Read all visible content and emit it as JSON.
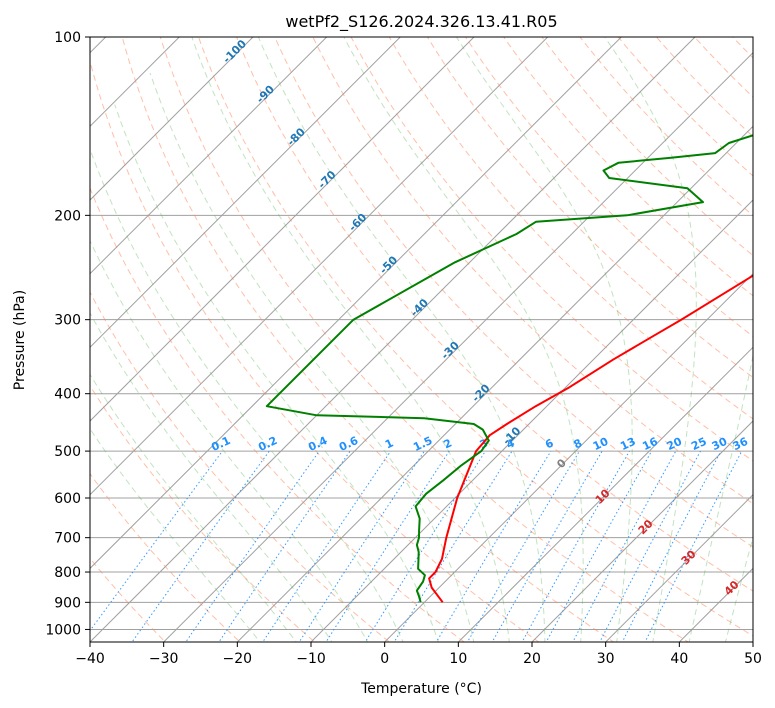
{
  "chart_data": {
    "type": "line",
    "subtype": "skew-t log-p diagram",
    "title": "wetPf2_S126.2024.326.13.41.R05",
    "xlabel": "Temperature (°C)",
    "ylabel": "Pressure (hPa)",
    "xlim": [
      -40,
      50
    ],
    "ylim": [
      1050,
      100
    ],
    "yscale": "log",
    "x_ticks": [
      -40,
      -30,
      -20,
      -10,
      0,
      10,
      20,
      30,
      40,
      50
    ],
    "y_ticks": [
      100,
      200,
      300,
      400,
      500,
      600,
      700,
      800,
      900,
      1000
    ],
    "grid": true,
    "series": [
      {
        "color": "#ff0000",
        "points": [
          [
            900,
            2.5
          ],
          [
            850,
            -1.0
          ],
          [
            820,
            -2.6
          ],
          [
            800,
            -2.6
          ],
          [
            760,
            -3.5
          ],
          [
            700,
            -5.8
          ],
          [
            600,
            -9.7
          ],
          [
            500,
            -13.5
          ],
          [
            470,
            -13.8
          ],
          [
            450,
            -13.0
          ],
          [
            420,
            -11.5
          ],
          [
            390,
            -9.5
          ],
          [
            350,
            -7.3
          ],
          [
            320,
            -5.1
          ],
          [
            300,
            -3.5
          ],
          [
            250,
            0.5
          ],
          [
            200,
            4.0
          ],
          [
            180,
            6.7
          ],
          [
            160,
            9.4
          ],
          [
            140,
            13.5
          ],
          [
            120,
            16.5
          ],
          [
            100,
            20.0
          ]
        ]
      },
      {
        "color": "#008000",
        "points": [
          [
            900,
            -0.5
          ],
          [
            880,
            -1.5
          ],
          [
            860,
            -2.6
          ],
          [
            830,
            -3.0
          ],
          [
            810,
            -3.6
          ],
          [
            790,
            -5.4
          ],
          [
            760,
            -6.7
          ],
          [
            740,
            -7.6
          ],
          [
            720,
            -8.8
          ],
          [
            700,
            -9.5
          ],
          [
            680,
            -10.5
          ],
          [
            650,
            -12.0
          ],
          [
            620,
            -14.2
          ],
          [
            590,
            -14.5
          ],
          [
            560,
            -14.0
          ],
          [
            530,
            -13.6
          ],
          [
            500,
            -12.8
          ],
          [
            480,
            -13.2
          ],
          [
            460,
            -15.5
          ],
          [
            450,
            -17.5
          ],
          [
            440,
            -25.0
          ],
          [
            435,
            -40.0
          ],
          [
            420,
            -48.0
          ],
          [
            300,
            -48.0
          ],
          [
            240,
            -42.0
          ],
          [
            215,
            -37.5
          ],
          [
            205,
            -36.5
          ],
          [
            200,
            -25.0
          ],
          [
            190,
            -16.5
          ],
          [
            180,
            -20.5
          ],
          [
            173,
            -32.5
          ],
          [
            168,
            -34.3
          ],
          [
            163,
            -33.3
          ],
          [
            160,
            -27.0
          ],
          [
            157,
            -21.5
          ],
          [
            151,
            -21.0
          ],
          [
            145,
            -18.0
          ],
          [
            140,
            -12.0
          ],
          [
            138,
            -10.5
          ],
          [
            132,
            -6.5
          ],
          [
            120,
            -4.0
          ],
          [
            117,
            -4.5
          ],
          [
            110,
            -3.5
          ],
          [
            100,
            0.5
          ]
        ]
      }
    ],
    "dry_adiabat_labels": [
      "-100",
      "-90",
      "-80",
      "-70",
      "-60",
      "-50",
      "-40",
      "-30",
      "-20",
      "-10",
      "0",
      "10",
      "20",
      "30",
      "40"
    ],
    "mixing_ratio_labels": [
      "0.1",
      "0.2",
      "0.4",
      "0.6",
      "1",
      "1.5",
      "2",
      "3",
      "4",
      "6",
      "8",
      "10",
      "13",
      "16",
      "20",
      "25",
      "30",
      "36"
    ],
    "colors": {
      "temperature": "#ff0000",
      "dewpoint": "#008000",
      "isotherm": "#a0a0a0",
      "dry_adiabat": "#ff7f50",
      "moist_adiabat": "#4daf4a",
      "mixing_ratio": "#1e90ff",
      "dry_label": "#1f77b4",
      "moist_label": "#d62728"
    }
  }
}
